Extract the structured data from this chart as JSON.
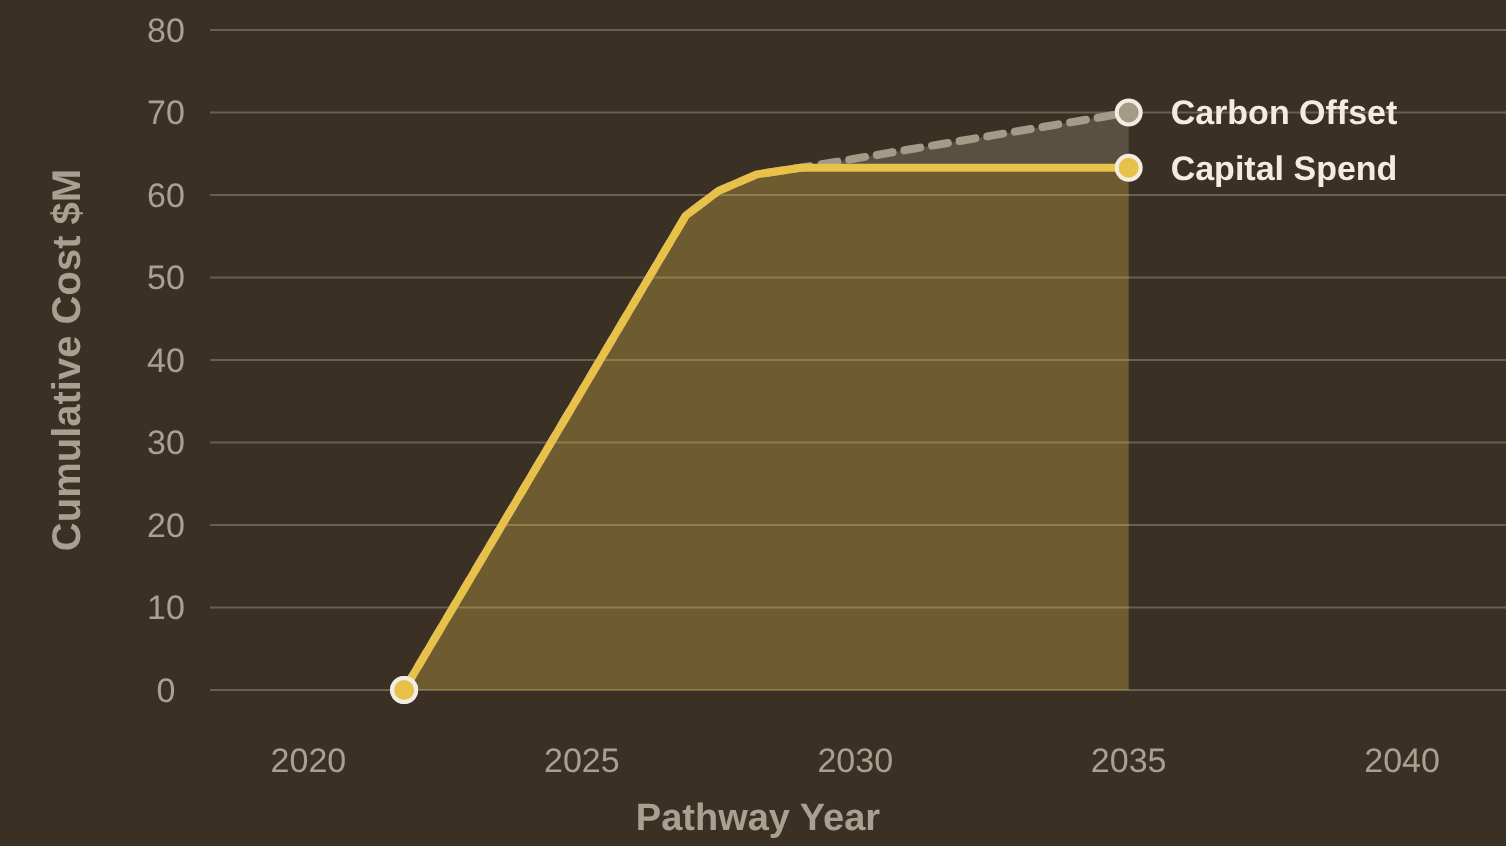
{
  "chart_data": {
    "type": "area",
    "xlabel": "Pathway Year",
    "ylabel": "Cumulative Cost $M",
    "xlim": [
      2018.2,
      2041.9
    ],
    "xticks": [
      2020,
      2025,
      2030,
      2035,
      2040
    ],
    "ylim": [
      0,
      80
    ],
    "yticks": [
      0,
      10,
      20,
      30,
      40,
      50,
      60,
      70,
      80
    ],
    "grid": "y",
    "line_style": "solid",
    "stacked": true,
    "x": [
      2021.75,
      2026.9,
      2027.5,
      2028.2,
      2029,
      2035
    ],
    "series": [
      {
        "name": "Capital Spend",
        "color": "#e8c14a",
        "values": [
          0,
          57.5,
          60.5,
          62.5,
          63.3,
          63.3
        ]
      },
      {
        "name": "Carbon Offset",
        "color": "#a39a88",
        "line_style": "dashed",
        "values": [
          0,
          0,
          0,
          0,
          0,
          6.7
        ]
      }
    ]
  }
}
